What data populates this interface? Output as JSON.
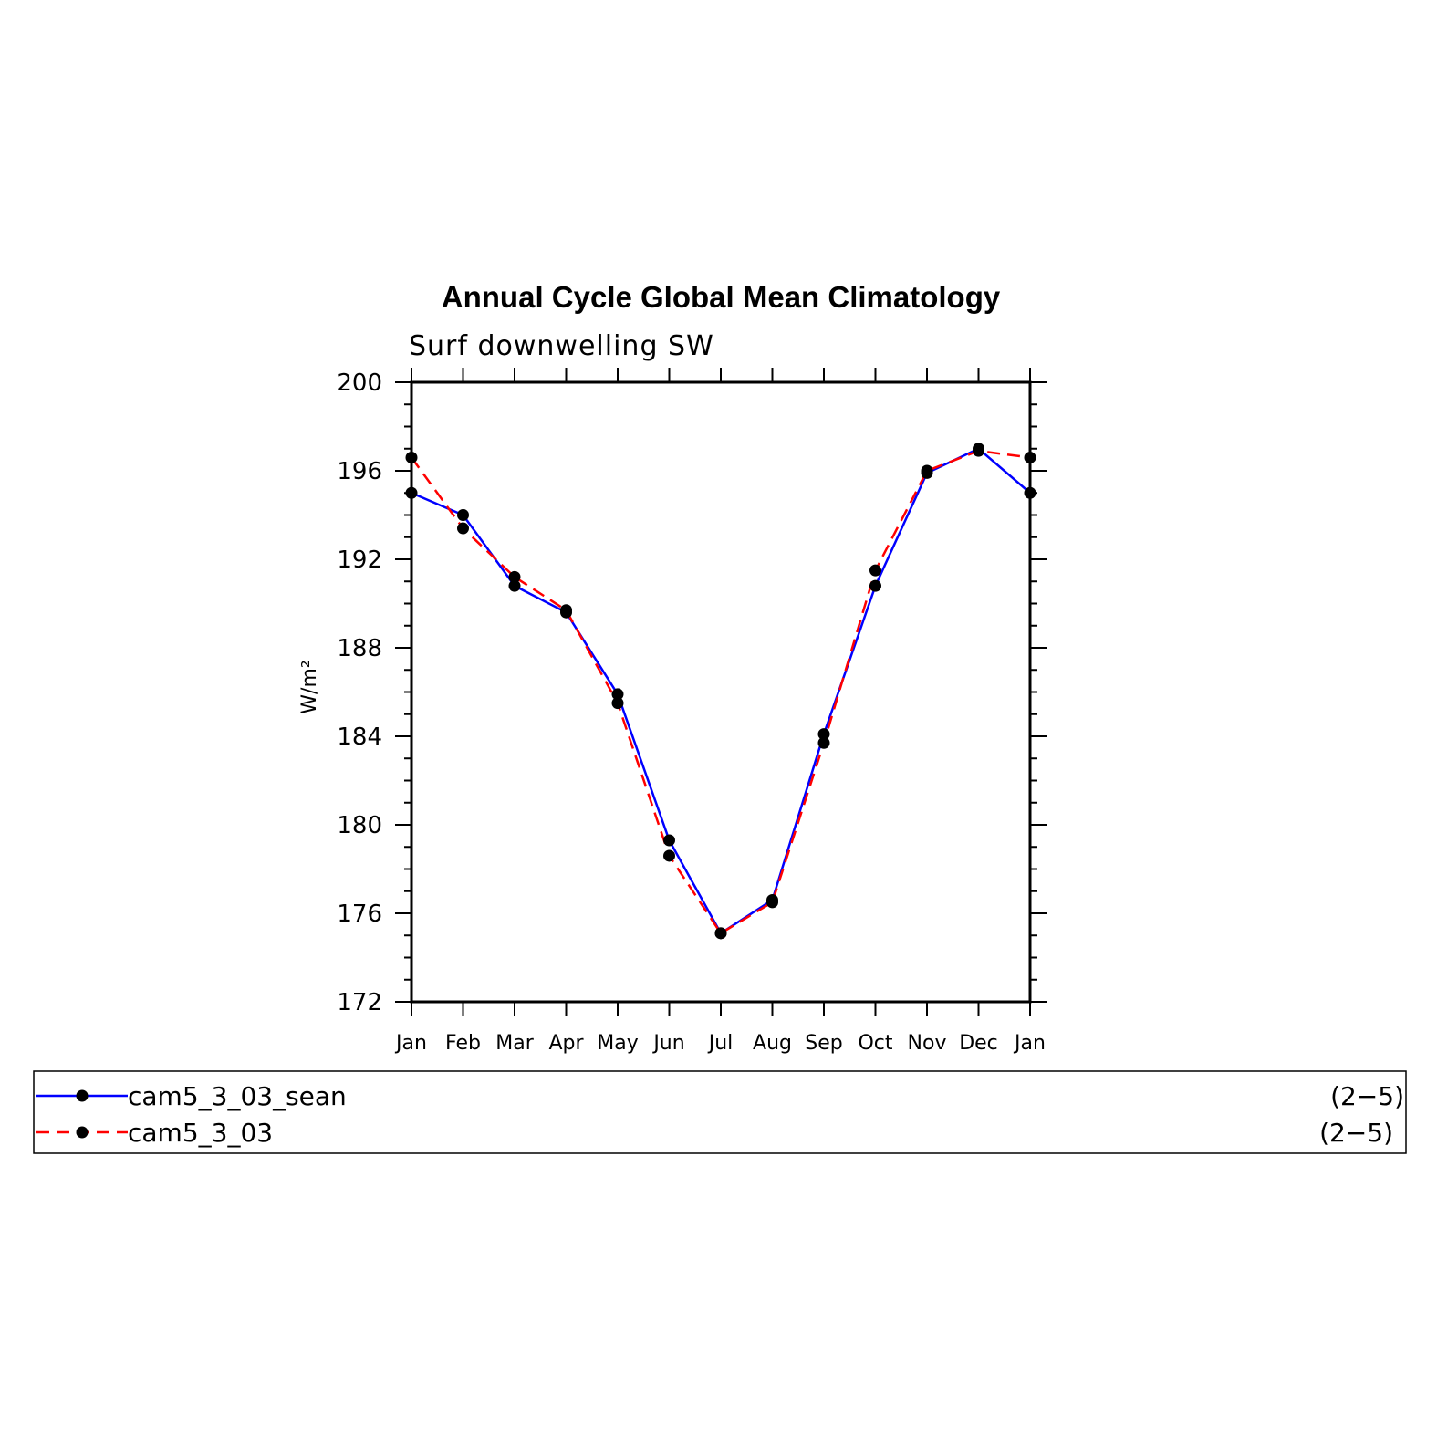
{
  "chart_data": {
    "type": "line",
    "title": "Annual Cycle Global Mean Climatology",
    "subtitle": "Surf downwelling SW",
    "ylabel": "W/m²",
    "ylim": [
      172,
      200
    ],
    "yticks": [
      "172",
      "176",
      "180",
      "184",
      "188",
      "192",
      "196",
      "200"
    ],
    "categories": [
      "Jan",
      "Feb",
      "Mar",
      "Apr",
      "May",
      "Jun",
      "Jul",
      "Aug",
      "Sep",
      "Oct",
      "Nov",
      "Dec",
      "Jan"
    ],
    "series": [
      {
        "name": "cam5_3_03_sean",
        "range": "(2−5)",
        "color": "#0000ff",
        "dash": "solid",
        "values": [
          195.0,
          194.0,
          190.8,
          189.6,
          185.9,
          179.3,
          175.1,
          176.6,
          184.1,
          190.8,
          195.9,
          197.0,
          195.0
        ]
      },
      {
        "name": "cam5_3_03",
        "range": "(2−5)",
        "color": "#ff0000",
        "dash": "dashed",
        "values": [
          196.6,
          193.4,
          191.2,
          189.7,
          185.5,
          178.6,
          175.1,
          176.5,
          183.7,
          191.5,
          196.0,
          196.9,
          196.6
        ]
      }
    ],
    "legend_placement": "bottom",
    "grid": false
  }
}
